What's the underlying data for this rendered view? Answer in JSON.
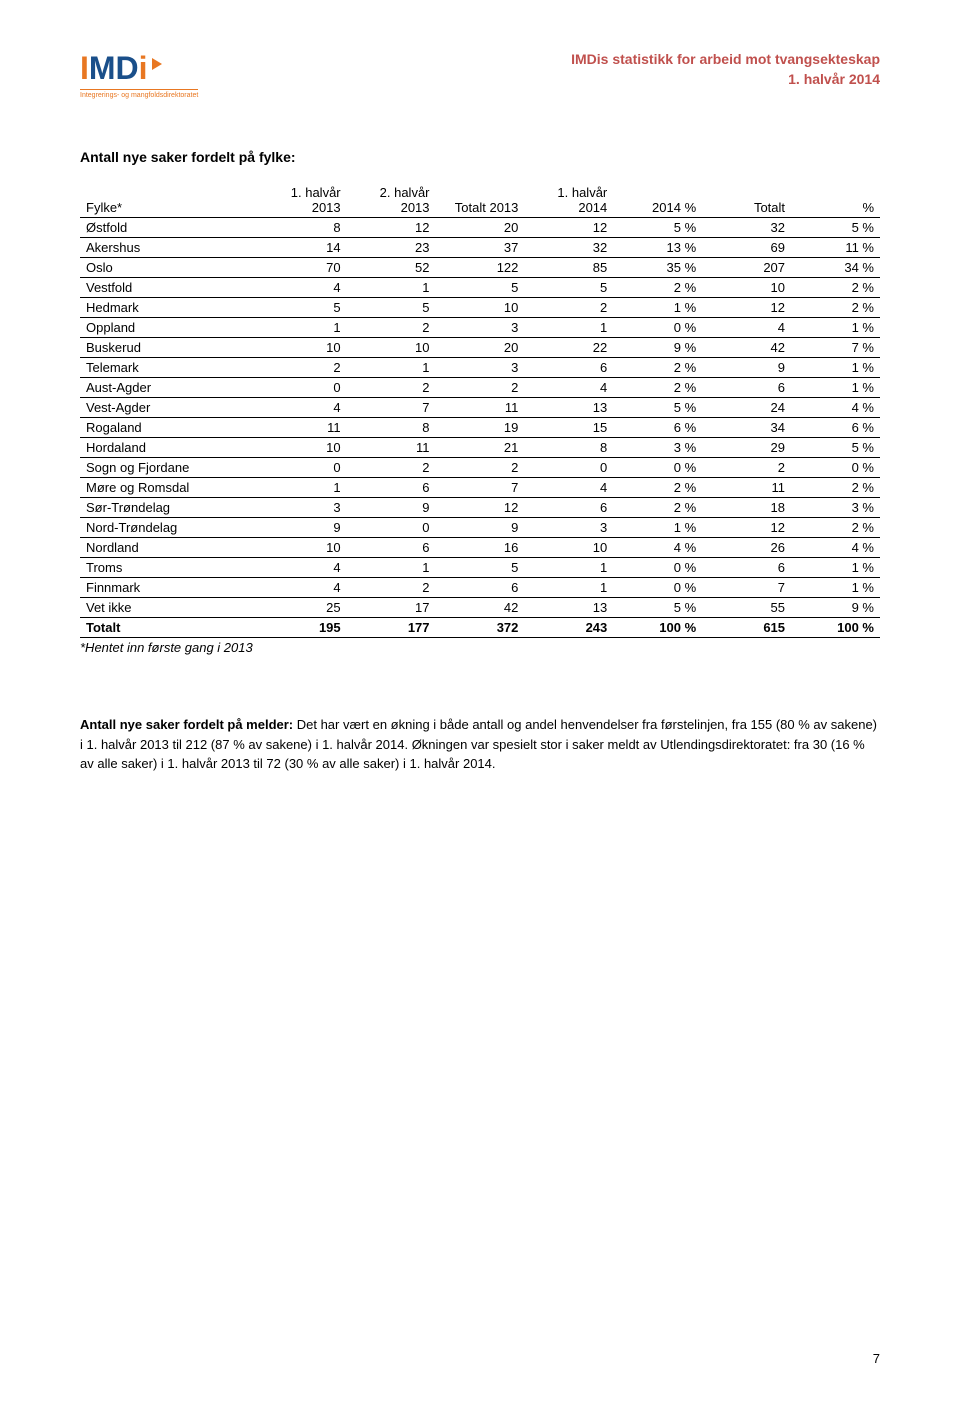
{
  "header": {
    "logo_text_parts": [
      "I",
      "M",
      "D",
      "i"
    ],
    "logo_subtext": "Integrerings- og mangfoldsdirektoratet",
    "title_line1": "IMDis statistikk for arbeid mot tvangsekteskap",
    "title_line2": "1. halvår 2014",
    "title_color": "#c0504d",
    "logo_orange": "#e87722",
    "logo_blue": "#1a4f8a"
  },
  "section_title": "Antall nye saker fordelt på fylke:",
  "table": {
    "columns": [
      "Fylke*",
      "1. halvår 2013",
      "2. halvår 2013",
      "Totalt 2013",
      "1. halvår 2014",
      "2014 %",
      "Totalt",
      "%"
    ],
    "rows": [
      [
        "Østfold",
        "8",
        "12",
        "20",
        "12",
        "5 %",
        "32",
        "5 %"
      ],
      [
        "Akershus",
        "14",
        "23",
        "37",
        "32",
        "13 %",
        "69",
        "11 %"
      ],
      [
        "Oslo",
        "70",
        "52",
        "122",
        "85",
        "35 %",
        "207",
        "34 %"
      ],
      [
        "Vestfold",
        "4",
        "1",
        "5",
        "5",
        "2 %",
        "10",
        "2 %"
      ],
      [
        "Hedmark",
        "5",
        "5",
        "10",
        "2",
        "1 %",
        "12",
        "2 %"
      ],
      [
        "Oppland",
        "1",
        "2",
        "3",
        "1",
        "0 %",
        "4",
        "1 %"
      ],
      [
        "Buskerud",
        "10",
        "10",
        "20",
        "22",
        "9 %",
        "42",
        "7 %"
      ],
      [
        "Telemark",
        "2",
        "1",
        "3",
        "6",
        "2 %",
        "9",
        "1 %"
      ],
      [
        "Aust-Agder",
        "0",
        "2",
        "2",
        "4",
        "2 %",
        "6",
        "1 %"
      ],
      [
        "Vest-Agder",
        "4",
        "7",
        "11",
        "13",
        "5 %",
        "24",
        "4 %"
      ],
      [
        "Rogaland",
        "11",
        "8",
        "19",
        "15",
        "6 %",
        "34",
        "6 %"
      ],
      [
        "Hordaland",
        "10",
        "11",
        "21",
        "8",
        "3 %",
        "29",
        "5 %"
      ],
      [
        "Sogn og Fjordane",
        "0",
        "2",
        "2",
        "0",
        "0 %",
        "2",
        "0 %"
      ],
      [
        "Møre og Romsdal",
        "1",
        "6",
        "7",
        "4",
        "2 %",
        "11",
        "2 %"
      ],
      [
        "Sør-Trøndelag",
        "3",
        "9",
        "12",
        "6",
        "2 %",
        "18",
        "3 %"
      ],
      [
        "Nord-Trøndelag",
        "9",
        "0",
        "9",
        "3",
        "1 %",
        "12",
        "2 %"
      ],
      [
        "Nordland",
        "10",
        "6",
        "16",
        "10",
        "4 %",
        "26",
        "4 %"
      ],
      [
        "Troms",
        "4",
        "1",
        "5",
        "1",
        "0 %",
        "6",
        "1 %"
      ],
      [
        "Finnmark",
        "4",
        "2",
        "6",
        "1",
        "0 %",
        "7",
        "1 %"
      ],
      [
        "Vet ikke",
        "25",
        "17",
        "42",
        "13",
        "5 %",
        "55",
        "9 %"
      ]
    ],
    "total_row": [
      "Totalt",
      "195",
      "177",
      "372",
      "243",
      "100 %",
      "615",
      "100 %"
    ],
    "footnote": "*Hentet inn første gang i 2013",
    "border_color": "#000000",
    "font_size": 13
  },
  "paragraph": {
    "lead": "Antall nye saker fordelt på melder:",
    "body": " Det har vært en økning i både antall og andel henvendelser fra førstelinjen, fra 155 (80 % av sakene) i 1. halvår 2013 til 212 (87 % av sakene) i 1. halvår 2014. Økningen var spesielt stor i saker meldt av Utlendingsdirektoratet: fra 30 (16 % av alle saker) i 1. halvår 2013 til 72 (30 % av alle saker) i 1. halvår 2014."
  },
  "page_number": "7"
}
